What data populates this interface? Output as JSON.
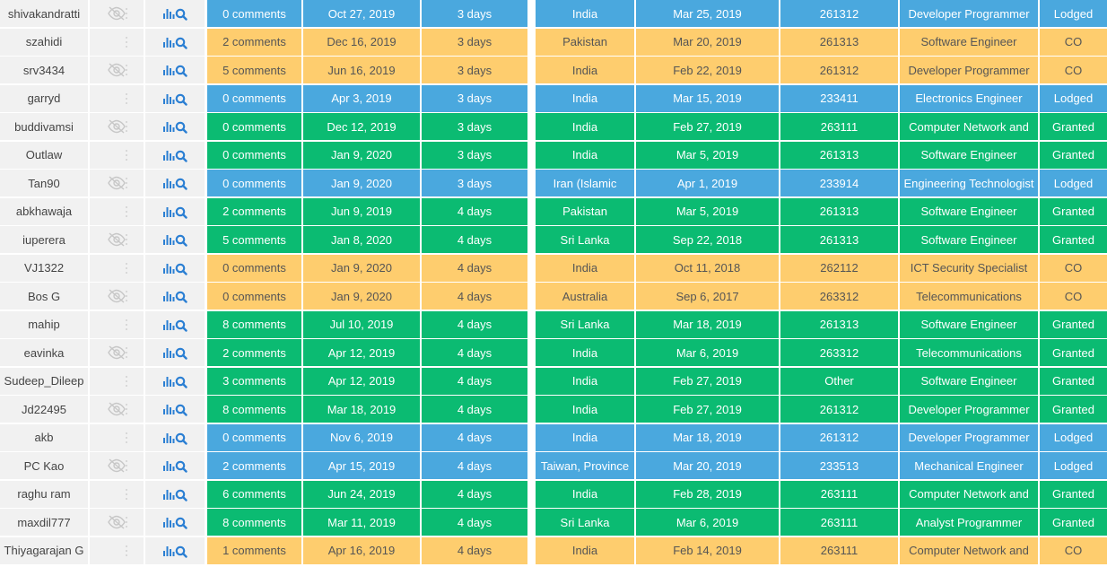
{
  "colors": {
    "lodged": "#4aa8de",
    "co": "#fecd6e",
    "granted": "#0bbb72",
    "icon_blue": "#2b7fd3",
    "icon_gray": "#c7c7c7"
  },
  "rows": [
    {
      "user": "shivakandratti",
      "comments": "0 comments",
      "date": "Oct 27, 2019",
      "days": "3 days",
      "country": "India",
      "lodged": "Mar 25, 2019",
      "code": "261312",
      "occupation": "Developer Programmer",
      "status": "Lodged",
      "hidden": true
    },
    {
      "user": "szahidi",
      "comments": "2 comments",
      "date": "Dec 16, 2019",
      "days": "3 days",
      "country": "Pakistan",
      "lodged": "Mar 20, 2019",
      "code": "261313",
      "occupation": "Software Engineer",
      "status": "CO",
      "hidden": false
    },
    {
      "user": "srv3434",
      "comments": "5 comments",
      "date": "Jun 16, 2019",
      "days": "3 days",
      "country": "India",
      "lodged": "Feb 22, 2019",
      "code": "261312",
      "occupation": "Developer Programmer",
      "status": "CO",
      "hidden": true
    },
    {
      "user": "garryd",
      "comments": "0 comments",
      "date": "Apr 3, 2019",
      "days": "3 days",
      "country": "India",
      "lodged": "Mar 15, 2019",
      "code": "233411",
      "occupation": "Electronics Engineer",
      "status": "Lodged",
      "hidden": false
    },
    {
      "user": "buddivamsi",
      "comments": "0 comments",
      "date": "Dec 12, 2019",
      "days": "3 days",
      "country": "India",
      "lodged": "Feb 27, 2019",
      "code": "263111",
      "occupation": "Computer Network and",
      "status": "Granted",
      "hidden": true
    },
    {
      "user": "Outlaw",
      "comments": "0 comments",
      "date": "Jan 9, 2020",
      "days": "3 days",
      "country": "India",
      "lodged": "Mar 5, 2019",
      "code": "261313",
      "occupation": "Software Engineer",
      "status": "Granted",
      "hidden": false
    },
    {
      "user": "Tan90",
      "comments": "0 comments",
      "date": "Jan 9, 2020",
      "days": "3 days",
      "country": "Iran (Islamic",
      "lodged": "Apr 1, 2019",
      "code": "233914",
      "occupation": "Engineering Technologist",
      "status": "Lodged",
      "hidden": true
    },
    {
      "user": "abkhawaja",
      "comments": "2 comments",
      "date": "Jun 9, 2019",
      "days": "4 days",
      "country": "Pakistan",
      "lodged": "Mar 5, 2019",
      "code": "261313",
      "occupation": "Software Engineer",
      "status": "Granted",
      "hidden": false
    },
    {
      "user": "iuperera",
      "comments": "5 comments",
      "date": "Jan 8, 2020",
      "days": "4 days",
      "country": "Sri Lanka",
      "lodged": "Sep 22, 2018",
      "code": "261313",
      "occupation": "Software Engineer",
      "status": "Granted",
      "hidden": true
    },
    {
      "user": "VJ1322",
      "comments": "0 comments",
      "date": "Jan 9, 2020",
      "days": "4 days",
      "country": "India",
      "lodged": "Oct 11, 2018",
      "code": "262112",
      "occupation": "ICT Security Specialist",
      "status": "CO",
      "hidden": false
    },
    {
      "user": "Bos G",
      "comments": "0 comments",
      "date": "Jan 9, 2020",
      "days": "4 days",
      "country": "Australia",
      "lodged": "Sep 6, 2017",
      "code": "263312",
      "occupation": "Telecommunications",
      "status": "CO",
      "hidden": true
    },
    {
      "user": "mahip",
      "comments": "8 comments",
      "date": "Jul 10, 2019",
      "days": "4 days",
      "country": "Sri Lanka",
      "lodged": "Mar 18, 2019",
      "code": "261313",
      "occupation": "Software Engineer",
      "status": "Granted",
      "hidden": false
    },
    {
      "user": "eavinka",
      "comments": "2 comments",
      "date": "Apr 12, 2019",
      "days": "4 days",
      "country": "India",
      "lodged": "Mar 6, 2019",
      "code": "263312",
      "occupation": "Telecommunications",
      "status": "Granted",
      "hidden": true
    },
    {
      "user": "Sudeep_Dileep",
      "comments": "3 comments",
      "date": "Apr 12, 2019",
      "days": "4 days",
      "country": "India",
      "lodged": "Feb 27, 2019",
      "code": "Other",
      "occupation": "Software Engineer",
      "status": "Granted",
      "hidden": false
    },
    {
      "user": "Jd22495",
      "comments": "8 comments",
      "date": "Mar 18, 2019",
      "days": "4 days",
      "country": "India",
      "lodged": "Feb 27, 2019",
      "code": "261312",
      "occupation": "Developer Programmer",
      "status": "Granted",
      "hidden": true
    },
    {
      "user": "akb",
      "comments": "0 comments",
      "date": "Nov 6, 2019",
      "days": "4 days",
      "country": "India",
      "lodged": "Mar 18, 2019",
      "code": "261312",
      "occupation": "Developer Programmer",
      "status": "Lodged",
      "hidden": false
    },
    {
      "user": "PC Kao",
      "comments": "2 comments",
      "date": "Apr 15, 2019",
      "days": "4 days",
      "country": "Taiwan, Province",
      "lodged": "Mar 20, 2019",
      "code": "233513",
      "occupation": "Mechanical Engineer",
      "status": "Lodged",
      "hidden": true
    },
    {
      "user": "raghu ram",
      "comments": "6 comments",
      "date": "Jun 24, 2019",
      "days": "4 days",
      "country": "India",
      "lodged": "Feb 28, 2019",
      "code": "263111",
      "occupation": "Computer Network and",
      "status": "Granted",
      "hidden": false
    },
    {
      "user": "maxdil777",
      "comments": "8 comments",
      "date": "Mar 11, 2019",
      "days": "4 days",
      "country": "Sri Lanka",
      "lodged": "Mar 6, 2019",
      "code": "263111",
      "occupation": "Analyst Programmer",
      "status": "Granted",
      "hidden": true
    },
    {
      "user": "Thiyagarajan G",
      "comments": "1 comments",
      "date": "Apr 16, 2019",
      "days": "4 days",
      "country": "India",
      "lodged": "Feb 14, 2019",
      "code": "263111",
      "occupation": "Computer Network and",
      "status": "CO",
      "hidden": false
    }
  ]
}
